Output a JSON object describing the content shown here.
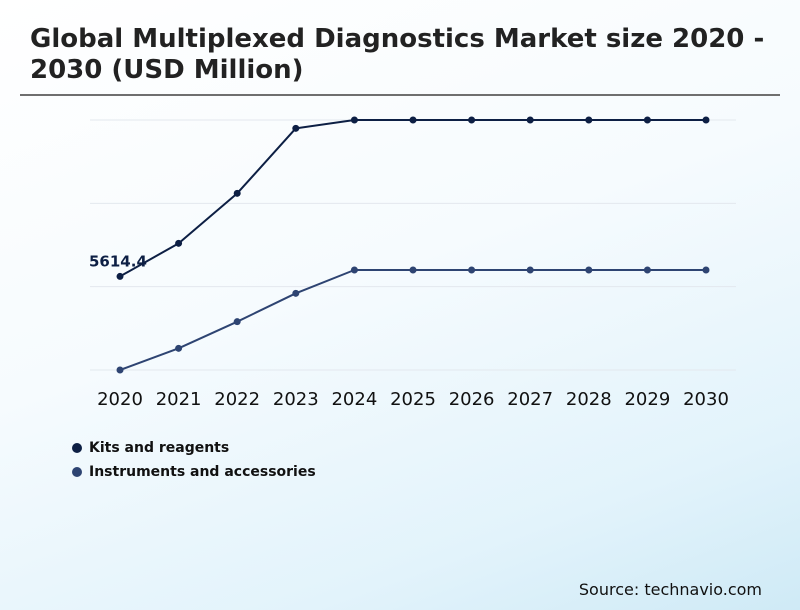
{
  "title": "Global Multiplexed Diagnostics Market size 2020 - 2030 (USD Million)",
  "source": "Source: technavio.com",
  "colors": {
    "kits": "#0d1f44",
    "instruments": "#2e4472",
    "grid": "#e3e8ee"
  },
  "chart_data": {
    "type": "line",
    "title": "Global Multiplexed Diagnostics Market size 2020 - 2030 (USD Million)",
    "xlabel": "",
    "ylabel": "",
    "grid": true,
    "legend_position": "bottom-left",
    "x": [
      "2020",
      "2021",
      "2022",
      "2023",
      "2024",
      "2025",
      "2026",
      "2027",
      "2028",
      "2029",
      "2030"
    ],
    "ylim": [
      0,
      15000
    ],
    "series": [
      {
        "name": "Kits and reagents",
        "color": "#0d1f44",
        "values": [
          5614.4,
          7600,
          10600,
          14500,
          15000,
          15000,
          15000,
          15000,
          15000,
          15000,
          15000
        ]
      },
      {
        "name": "Instruments and accessories",
        "color": "#2e4472",
        "values": [
          0,
          1300,
          2900,
          4600,
          6000,
          6000,
          6000,
          6000,
          6000,
          6000,
          6000
        ]
      }
    ],
    "data_labels": [
      {
        "series": 0,
        "index": 0,
        "text": "5614.4"
      }
    ]
  }
}
